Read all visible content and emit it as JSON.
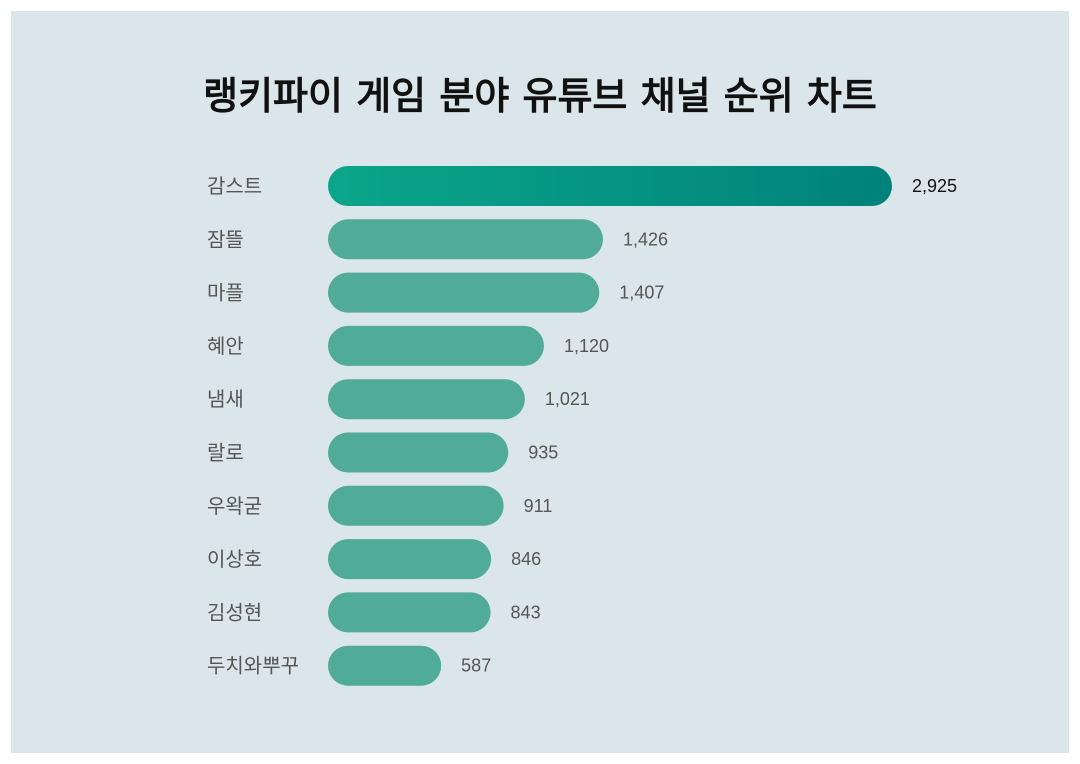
{
  "chart_data": {
    "type": "bar",
    "orientation": "horizontal",
    "title": "랭키파이 게임 분야 유튜브 채널 순위 차트",
    "categories": [
      "감스트",
      "잠뜰",
      "마플",
      "혜안",
      "냄새",
      "랄로",
      "우왁굳",
      "이상호",
      "김성현",
      "두치와뿌꾸"
    ],
    "values": [
      2925,
      1426,
      1407,
      1120,
      1021,
      935,
      911,
      846,
      843,
      587
    ],
    "value_labels": [
      "2,925",
      "1,426",
      "1,407",
      "1,120",
      "1,021",
      "935",
      "911",
      "846",
      "843",
      "587"
    ],
    "xlabel": "",
    "ylabel": "",
    "grid": false,
    "legend": "none"
  },
  "colors": {
    "background": "#dbe6ea",
    "bar": "#50ab9a",
    "top_bar_start": "#0aa68a",
    "top_bar_end": "#00827a",
    "text": "#555555",
    "title": "#111111"
  }
}
